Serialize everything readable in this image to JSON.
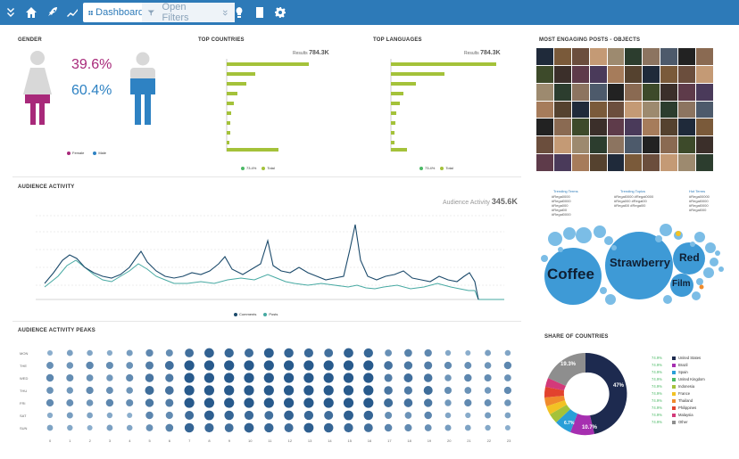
{
  "toolbar": {
    "dashboard_label": "Dashboard",
    "filter_label": "Open Filters"
  },
  "gender": {
    "title": "GENDER",
    "female_pct": "39.6%",
    "male_pct": "60.4%",
    "female_label": "Female",
    "male_label": "Male",
    "female_color": "#a8297a",
    "male_color": "#2e82c3"
  },
  "top_countries": {
    "title": "TOP COUNTRIES",
    "results_label": "Results",
    "results_value": "784.3K",
    "legend_1": "73.4%",
    "legend_2": "Total"
  },
  "top_languages": {
    "title": "TOP LANGUAGES",
    "results_label": "Results",
    "results_value": "784.3K",
    "legend_1": "73.4%",
    "legend_2": "Total"
  },
  "engaging_posts": {
    "title": "MOST ENGAGING POSTS - OBJECTS"
  },
  "audience_activity": {
    "title": "AUDIENCE ACTIVITY",
    "label": "Audience Activity",
    "value": "345.6K",
    "legend_comments": "Comments",
    "legend_posts": "Posts"
  },
  "topics": {
    "col1": "Trending Terms",
    "col2": "Trending Topics",
    "col3": "Hot Terms",
    "col1_items": [
      "#Rega0000",
      "#Regal0000",
      "#Rega000",
      "#Regal00",
      "#Regal0000"
    ],
    "col2_items": [
      "#Regal0000 #Regal0000",
      "#Rega000 #Regal00",
      "#Regal00 #Regal00"
    ],
    "col3_items": [
      "#Rega00000",
      "#Regal0000",
      "#Regal0000",
      "#Regal000"
    ],
    "bubbles": [
      "Coffee",
      "Strawberry",
      "Red",
      "Film"
    ]
  },
  "peaks": {
    "title": "AUDIENCE ACTIVITY PEAKS",
    "days": [
      "MON",
      "THE",
      "WED",
      "THU",
      "FRI",
      "SAT",
      "SUN"
    ],
    "hours": [
      "0",
      "1",
      "2",
      "3",
      "4",
      "5",
      "6",
      "7",
      "8",
      "9",
      "10",
      "11",
      "12",
      "13",
      "14",
      "15",
      "16",
      "17",
      "18",
      "19",
      "20",
      "21",
      "22",
      "23"
    ]
  },
  "share": {
    "title": "SHARE OF COUNTRIES",
    "donut_labels": [
      "47%",
      "10.7%",
      "6.7%",
      "19.3%"
    ],
    "legend": [
      {
        "pct": "74.9%",
        "name": "United States",
        "color": "#1d2a4f"
      },
      {
        "pct": "74.9%",
        "name": "Brazil",
        "color": "#a62fb0"
      },
      {
        "pct": "74.9%",
        "name": "Spain",
        "color": "#2a9fd8"
      },
      {
        "pct": "74.9%",
        "name": "United Kingdom",
        "color": "#4cb966"
      },
      {
        "pct": "74.9%",
        "name": "Indonesia",
        "color": "#a4c23a"
      },
      {
        "pct": "74.9%",
        "name": "France",
        "color": "#f2c224"
      },
      {
        "pct": "74.9%",
        "name": "Thailand",
        "color": "#f08b2c"
      },
      {
        "pct": "74.9%",
        "name": "Philippines",
        "color": "#e2422e"
      },
      {
        "pct": "74.9%",
        "name": "Malaysia",
        "color": "#d33a7a"
      },
      {
        "pct": "74.9%",
        "name": "Other",
        "color": "#8e8e8e"
      }
    ]
  }
}
